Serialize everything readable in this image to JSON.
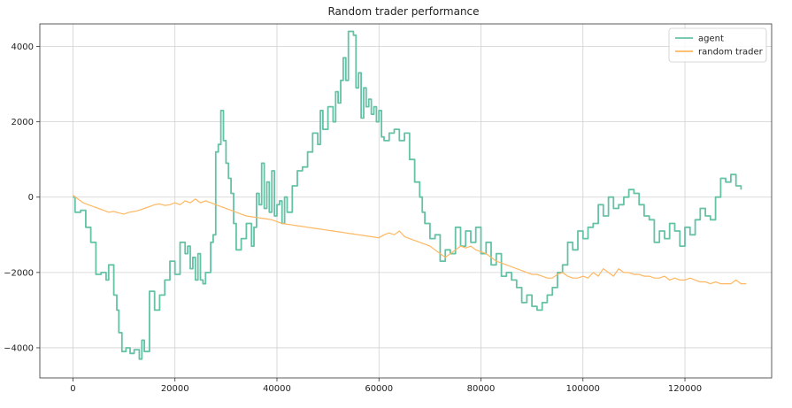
{
  "chart_data": {
    "type": "line",
    "title": "Random trader performance",
    "xlabel": "",
    "ylabel": "",
    "xlim": [
      -6500,
      137000
    ],
    "ylim": [
      -4800,
      4600
    ],
    "x_ticks": [
      0,
      20000,
      40000,
      60000,
      80000,
      100000,
      120000
    ],
    "y_ticks": [
      -4000,
      -2000,
      0,
      2000,
      4000
    ],
    "grid": true,
    "legend": "top-right",
    "series": [
      {
        "name": "agent",
        "color": "#66c2a5",
        "step": true,
        "points": [
          [
            0,
            0
          ],
          [
            400,
            -400
          ],
          [
            1500,
            -350
          ],
          [
            2500,
            -800
          ],
          [
            3500,
            -1200
          ],
          [
            4500,
            -2050
          ],
          [
            5500,
            -2000
          ],
          [
            6500,
            -2200
          ],
          [
            7000,
            -1800
          ],
          [
            8000,
            -2600
          ],
          [
            8600,
            -3000
          ],
          [
            9000,
            -3600
          ],
          [
            9600,
            -4100
          ],
          [
            10400,
            -4000
          ],
          [
            11200,
            -4150
          ],
          [
            12000,
            -4050
          ],
          [
            13000,
            -4300
          ],
          [
            13500,
            -3800
          ],
          [
            14000,
            -4100
          ],
          [
            15000,
            -2500
          ],
          [
            16000,
            -3000
          ],
          [
            17000,
            -2600
          ],
          [
            18000,
            -2200
          ],
          [
            19000,
            -1700
          ],
          [
            20000,
            -2050
          ],
          [
            21000,
            -1200
          ],
          [
            22000,
            -1500
          ],
          [
            22500,
            -1300
          ],
          [
            23000,
            -1900
          ],
          [
            23500,
            -1600
          ],
          [
            24000,
            -2200
          ],
          [
            24500,
            -1500
          ],
          [
            25000,
            -2200
          ],
          [
            25500,
            -2300
          ],
          [
            26000,
            -2000
          ],
          [
            27000,
            -1200
          ],
          [
            27500,
            -1000
          ],
          [
            28000,
            1200
          ],
          [
            28500,
            1400
          ],
          [
            29000,
            2300
          ],
          [
            29500,
            1500
          ],
          [
            30000,
            900
          ],
          [
            30500,
            500
          ],
          [
            31000,
            100
          ],
          [
            31500,
            -700
          ],
          [
            32000,
            -1400
          ],
          [
            33000,
            -1100
          ],
          [
            34000,
            -700
          ],
          [
            35000,
            -1300
          ],
          [
            35500,
            -800
          ],
          [
            36000,
            100
          ],
          [
            36500,
            -200
          ],
          [
            37000,
            900
          ],
          [
            37500,
            -300
          ],
          [
            38000,
            400
          ],
          [
            38500,
            -400
          ],
          [
            39000,
            700
          ],
          [
            39500,
            -500
          ],
          [
            40000,
            -200
          ],
          [
            40500,
            -100
          ],
          [
            41000,
            -700
          ],
          [
            41500,
            0
          ],
          [
            42000,
            -400
          ],
          [
            43000,
            300
          ],
          [
            44000,
            700
          ],
          [
            45000,
            800
          ],
          [
            46000,
            1200
          ],
          [
            47000,
            1700
          ],
          [
            48000,
            1400
          ],
          [
            48500,
            2300
          ],
          [
            49000,
            1800
          ],
          [
            50000,
            2400
          ],
          [
            51000,
            2000
          ],
          [
            51500,
            2800
          ],
          [
            52000,
            2500
          ],
          [
            52500,
            3100
          ],
          [
            53000,
            3700
          ],
          [
            53500,
            3100
          ],
          [
            54000,
            4400
          ],
          [
            55000,
            4300
          ],
          [
            55500,
            2900
          ],
          [
            56000,
            3300
          ],
          [
            56500,
            2100
          ],
          [
            57000,
            2900
          ],
          [
            57500,
            2400
          ],
          [
            58000,
            2600
          ],
          [
            58500,
            2200
          ],
          [
            59000,
            2400
          ],
          [
            59500,
            2000
          ],
          [
            60000,
            2300
          ],
          [
            60500,
            1600
          ],
          [
            61000,
            1500
          ],
          [
            62000,
            1700
          ],
          [
            63000,
            1800
          ],
          [
            64000,
            1500
          ],
          [
            65000,
            1700
          ],
          [
            66000,
            1000
          ],
          [
            67000,
            400
          ],
          [
            68000,
            0
          ],
          [
            68500,
            -400
          ],
          [
            69000,
            -700
          ],
          [
            70000,
            -1100
          ],
          [
            71000,
            -1000
          ],
          [
            72000,
            -1700
          ],
          [
            73000,
            -1400
          ],
          [
            74000,
            -1500
          ],
          [
            75000,
            -800
          ],
          [
            76000,
            -1300
          ],
          [
            77000,
            -900
          ],
          [
            78000,
            -1200
          ],
          [
            79000,
            -800
          ],
          [
            80000,
            -1500
          ],
          [
            81000,
            -1200
          ],
          [
            82000,
            -1800
          ],
          [
            83000,
            -1500
          ],
          [
            84000,
            -2100
          ],
          [
            85000,
            -2000
          ],
          [
            86000,
            -2200
          ],
          [
            87000,
            -2400
          ],
          [
            88000,
            -2800
          ],
          [
            89000,
            -2600
          ],
          [
            90000,
            -2900
          ],
          [
            91000,
            -3000
          ],
          [
            92000,
            -2800
          ],
          [
            93000,
            -2600
          ],
          [
            94000,
            -2400
          ],
          [
            95000,
            -2000
          ],
          [
            96000,
            -1800
          ],
          [
            97000,
            -1200
          ],
          [
            98000,
            -1400
          ],
          [
            99000,
            -900
          ],
          [
            100000,
            -1100
          ],
          [
            101000,
            -800
          ],
          [
            102000,
            -700
          ],
          [
            103000,
            -200
          ],
          [
            104000,
            -500
          ],
          [
            105000,
            0
          ],
          [
            106000,
            -300
          ],
          [
            107000,
            -200
          ],
          [
            108000,
            0
          ],
          [
            109000,
            200
          ],
          [
            110000,
            100
          ],
          [
            111000,
            -200
          ],
          [
            112000,
            -500
          ],
          [
            113000,
            -600
          ],
          [
            114000,
            -1200
          ],
          [
            115000,
            -900
          ],
          [
            116000,
            -1100
          ],
          [
            117000,
            -700
          ],
          [
            118000,
            -900
          ],
          [
            119000,
            -1300
          ],
          [
            120000,
            -800
          ],
          [
            121000,
            -1000
          ],
          [
            122000,
            -600
          ],
          [
            123000,
            -300
          ],
          [
            124000,
            -500
          ],
          [
            125000,
            -600
          ],
          [
            126000,
            0
          ],
          [
            127000,
            500
          ],
          [
            128000,
            400
          ],
          [
            129000,
            600
          ],
          [
            130000,
            300
          ],
          [
            131000,
            200
          ]
        ]
      },
      {
        "name": "random trader",
        "color": "#fdb863",
        "step": false,
        "points": [
          [
            0,
            50
          ],
          [
            1000,
            -50
          ],
          [
            2000,
            -150
          ],
          [
            3000,
            -200
          ],
          [
            4000,
            -250
          ],
          [
            5000,
            -300
          ],
          [
            6000,
            -350
          ],
          [
            7000,
            -400
          ],
          [
            8000,
            -380
          ],
          [
            9000,
            -420
          ],
          [
            10000,
            -450
          ],
          [
            11000,
            -400
          ],
          [
            12000,
            -380
          ],
          [
            13000,
            -350
          ],
          [
            14000,
            -300
          ],
          [
            15000,
            -250
          ],
          [
            16000,
            -200
          ],
          [
            17000,
            -180
          ],
          [
            18000,
            -220
          ],
          [
            19000,
            -200
          ],
          [
            20000,
            -150
          ],
          [
            21000,
            -200
          ],
          [
            22000,
            -100
          ],
          [
            23000,
            -150
          ],
          [
            24000,
            -50
          ],
          [
            25000,
            -150
          ],
          [
            26000,
            -100
          ],
          [
            27000,
            -150
          ],
          [
            28000,
            -200
          ],
          [
            29000,
            -250
          ],
          [
            30000,
            -300
          ],
          [
            31000,
            -350
          ],
          [
            32000,
            -400
          ],
          [
            33000,
            -450
          ],
          [
            34000,
            -500
          ],
          [
            35000,
            -520
          ],
          [
            36000,
            -540
          ],
          [
            37000,
            -560
          ],
          [
            38000,
            -580
          ],
          [
            39000,
            -600
          ],
          [
            40000,
            -650
          ],
          [
            41000,
            -700
          ],
          [
            42000,
            -720
          ],
          [
            43000,
            -740
          ],
          [
            44000,
            -760
          ],
          [
            45000,
            -780
          ],
          [
            46000,
            -800
          ],
          [
            47000,
            -820
          ],
          [
            48000,
            -840
          ],
          [
            49000,
            -860
          ],
          [
            50000,
            -880
          ],
          [
            51000,
            -900
          ],
          [
            52000,
            -920
          ],
          [
            53000,
            -940
          ],
          [
            54000,
            -960
          ],
          [
            55000,
            -980
          ],
          [
            56000,
            -1000
          ],
          [
            57000,
            -1020
          ],
          [
            58000,
            -1040
          ],
          [
            59000,
            -1060
          ],
          [
            60000,
            -1080
          ],
          [
            61000,
            -1000
          ],
          [
            62000,
            -950
          ],
          [
            63000,
            -1000
          ],
          [
            64000,
            -900
          ],
          [
            65000,
            -1050
          ],
          [
            66000,
            -1100
          ],
          [
            67000,
            -1150
          ],
          [
            68000,
            -1200
          ],
          [
            69000,
            -1250
          ],
          [
            70000,
            -1300
          ],
          [
            71000,
            -1400
          ],
          [
            72000,
            -1500
          ],
          [
            73000,
            -1600
          ],
          [
            74000,
            -1500
          ],
          [
            75000,
            -1400
          ],
          [
            76000,
            -1300
          ],
          [
            77000,
            -1350
          ],
          [
            78000,
            -1300
          ],
          [
            79000,
            -1400
          ],
          [
            80000,
            -1450
          ],
          [
            81000,
            -1500
          ],
          [
            82000,
            -1600
          ],
          [
            83000,
            -1700
          ],
          [
            84000,
            -1750
          ],
          [
            85000,
            -1800
          ],
          [
            86000,
            -1850
          ],
          [
            87000,
            -1900
          ],
          [
            88000,
            -1950
          ],
          [
            89000,
            -2000
          ],
          [
            90000,
            -2050
          ],
          [
            91000,
            -2050
          ],
          [
            92000,
            -2100
          ],
          [
            93000,
            -2150
          ],
          [
            94000,
            -2150
          ],
          [
            95000,
            -2050
          ],
          [
            96000,
            -2000
          ],
          [
            97000,
            -2100
          ],
          [
            98000,
            -2150
          ],
          [
            99000,
            -2150
          ],
          [
            100000,
            -2100
          ],
          [
            101000,
            -2150
          ],
          [
            102000,
            -2000
          ],
          [
            103000,
            -2100
          ],
          [
            104000,
            -1900
          ],
          [
            105000,
            -2000
          ],
          [
            106000,
            -2100
          ],
          [
            107000,
            -1900
          ],
          [
            108000,
            -2000
          ],
          [
            109000,
            -2000
          ],
          [
            110000,
            -2050
          ],
          [
            111000,
            -2050
          ],
          [
            112000,
            -2100
          ],
          [
            113000,
            -2100
          ],
          [
            114000,
            -2150
          ],
          [
            115000,
            -2150
          ],
          [
            116000,
            -2100
          ],
          [
            117000,
            -2200
          ],
          [
            118000,
            -2150
          ],
          [
            119000,
            -2200
          ],
          [
            120000,
            -2200
          ],
          [
            121000,
            -2150
          ],
          [
            122000,
            -2200
          ],
          [
            123000,
            -2250
          ],
          [
            124000,
            -2250
          ],
          [
            125000,
            -2300
          ],
          [
            126000,
            -2250
          ],
          [
            127000,
            -2300
          ],
          [
            128000,
            -2300
          ],
          [
            129000,
            -2300
          ],
          [
            130000,
            -2200
          ],
          [
            131000,
            -2300
          ],
          [
            132000,
            -2300
          ]
        ]
      }
    ]
  }
}
